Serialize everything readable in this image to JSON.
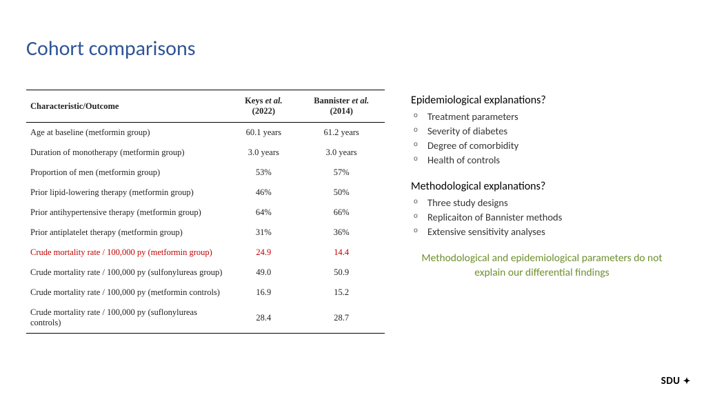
{
  "title": "Cohort comparisons",
  "table": {
    "headers": {
      "c0": "Characteristic/Outcome",
      "c1_pre": "Keys ",
      "c1_etal": "et al.",
      "c1_post": " (2022)",
      "c2_pre": "Bannister ",
      "c2_etal": "et al.",
      "c2_post": " (2014)"
    },
    "rows": [
      {
        "label": "Age at baseline (metformin group)",
        "v1": "60.1 years",
        "v2": "61.2 years",
        "hl": false
      },
      {
        "label": "Duration of monotherapy (metformin group)",
        "v1": "3.0 years",
        "v2": "3.0 years",
        "hl": false
      },
      {
        "label": "Proportion of men (metformin group)",
        "v1": "53%",
        "v2": "57%",
        "hl": false
      },
      {
        "label": "Prior lipid-lowering therapy (metformin group)",
        "v1": "46%",
        "v2": "50%",
        "hl": false
      },
      {
        "label": "Prior antihypertensive therapy (metformin group)",
        "v1": "64%",
        "v2": "66%",
        "hl": false
      },
      {
        "label": "Prior antiplatelet therapy (metformin group)",
        "v1": "31%",
        "v2": "36%",
        "hl": false
      },
      {
        "label": "Crude mortality rate / 100,000 py (metformin group)",
        "v1": "24.9",
        "v2": "14.4",
        "hl": true
      },
      {
        "label": "Crude mortality rate / 100,000 py (sulfonylureas group)",
        "v1": "49.0",
        "v2": "50.9",
        "hl": false
      },
      {
        "label": "Crude mortality rate / 100,000 py (metformin controls)",
        "v1": "16.9",
        "v2": "15.2",
        "hl": false
      },
      {
        "label": "Crude mortality rate / 100,000 py (suflonylureas controls)",
        "v1": "28.4",
        "v2": "28.7",
        "hl": false
      }
    ]
  },
  "right": {
    "epi_head": "Epidemiological explanations?",
    "epi_items": [
      "Treatment parameters",
      "Severity of diabetes",
      "Degree of comorbidity",
      "Health of controls"
    ],
    "meth_head": "Methodological explanations?",
    "meth_items": [
      "Three study designs",
      "Replicaiton of Bannister methods",
      "Extensive sensitivity analyses"
    ],
    "conclusion": "Methodological and epidemiological parameters do not explain our differential findings"
  },
  "logo": {
    "text": "SDU",
    "mark": "✦"
  },
  "colors": {
    "title": "#2f5597",
    "highlight": "#c00000",
    "conclusion": "#6f8f2f",
    "text": "#222222",
    "bg": "#ffffff"
  }
}
